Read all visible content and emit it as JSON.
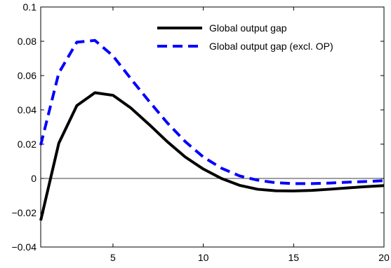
{
  "chart_data": {
    "type": "line",
    "title": "",
    "xlabel": "",
    "ylabel": "",
    "xlim": [
      1,
      20
    ],
    "ylim": [
      -0.04,
      0.1
    ],
    "x_ticks": [
      5,
      10,
      15,
      20
    ],
    "x_tick_labels": [
      "5",
      "10",
      "15",
      "20"
    ],
    "y_ticks": [
      -0.04,
      -0.02,
      0,
      0.02,
      0.04,
      0.06,
      0.08,
      0.1
    ],
    "y_tick_labels": [
      "−0.04",
      "−0.02",
      "0",
      "0.02",
      "0.04",
      "0.06",
      "0.08",
      "0.1"
    ],
    "zero_line": true,
    "grid": false,
    "legend_position": "top-right",
    "x": [
      1,
      2,
      3,
      4,
      5,
      6,
      7,
      8,
      9,
      10,
      11,
      12,
      13,
      14,
      15,
      16,
      17,
      18,
      19,
      20
    ],
    "series": [
      {
        "name": "Global output gap",
        "style": "solid",
        "color": "#000000",
        "values": [
          -0.0245,
          0.0205,
          0.0425,
          0.05,
          0.0485,
          0.041,
          0.0315,
          0.0215,
          0.0125,
          0.0055,
          0.0,
          -0.004,
          -0.0063,
          -0.0072,
          -0.0073,
          -0.007,
          -0.0063,
          -0.0055,
          -0.0048,
          -0.0042
        ]
      },
      {
        "name": "Global output gap (excl. OP)",
        "style": "dashed",
        "color": "#0000ff",
        "values": [
          0.0195,
          0.0615,
          0.0795,
          0.0805,
          0.0715,
          0.058,
          0.045,
          0.0325,
          0.0215,
          0.0125,
          0.006,
          0.0015,
          -0.001,
          -0.0025,
          -0.003,
          -0.003,
          -0.0027,
          -0.0022,
          -0.0018,
          -0.0013
        ]
      }
    ]
  }
}
